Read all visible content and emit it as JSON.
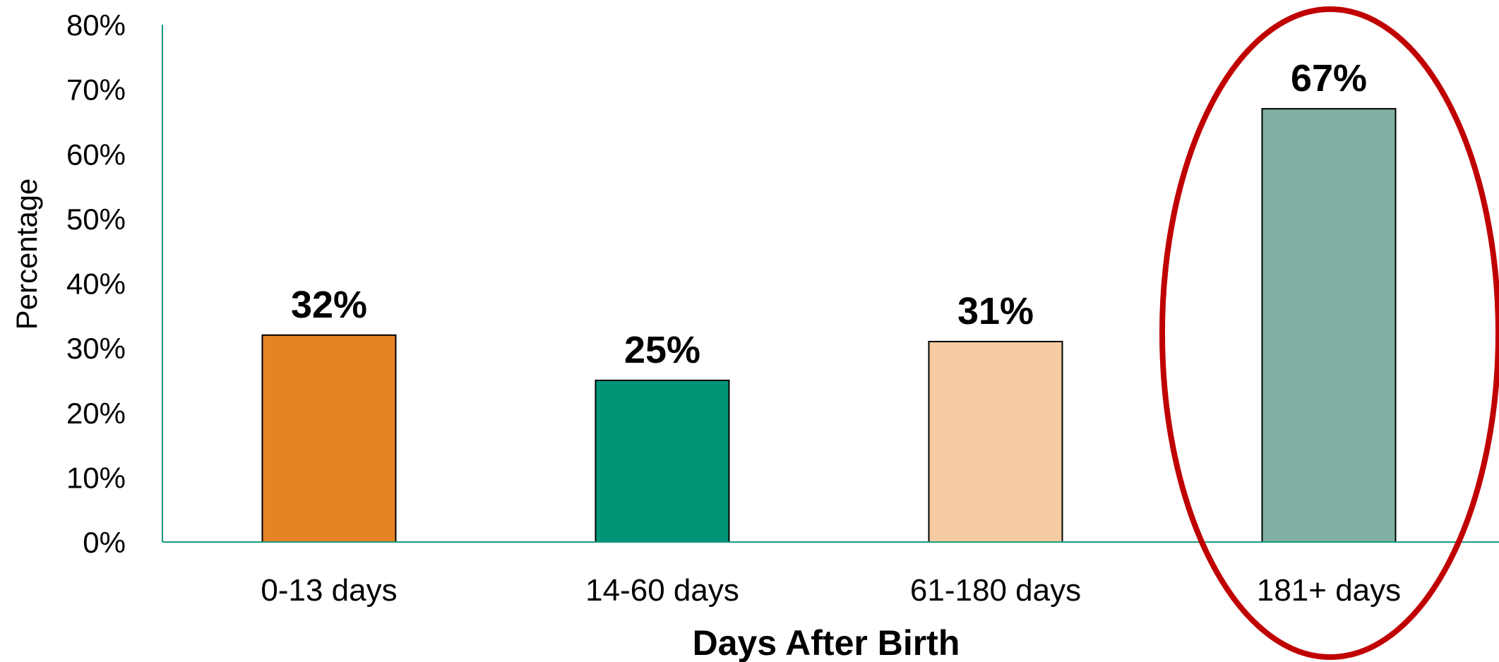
{
  "chart_data": {
    "type": "bar",
    "categories": [
      "0-13 days",
      "14-60 days",
      "61-180 days",
      "181+ days"
    ],
    "values": [
      32,
      25,
      31,
      67
    ],
    "value_labels": [
      "32%",
      "25%",
      "31%",
      "67%"
    ],
    "bar_colors": [
      "#E58424",
      "#009577",
      "#F5CBA1",
      "#7FB0A3"
    ],
    "title": "",
    "xlabel": "Days After Birth",
    "ylabel": "Percentage",
    "ylim": [
      0,
      80
    ],
    "yticks": [
      0,
      10,
      20,
      30,
      40,
      50,
      60,
      70,
      80
    ],
    "ytick_labels": [
      "0%",
      "10%",
      "20%",
      "30%",
      "40%",
      "50%",
      "60%",
      "70%",
      "80%"
    ],
    "grid": false,
    "axis_color": "#1A9A80",
    "highlight": {
      "category": "181+ days",
      "shape": "ellipse",
      "color": "#C00000"
    }
  }
}
